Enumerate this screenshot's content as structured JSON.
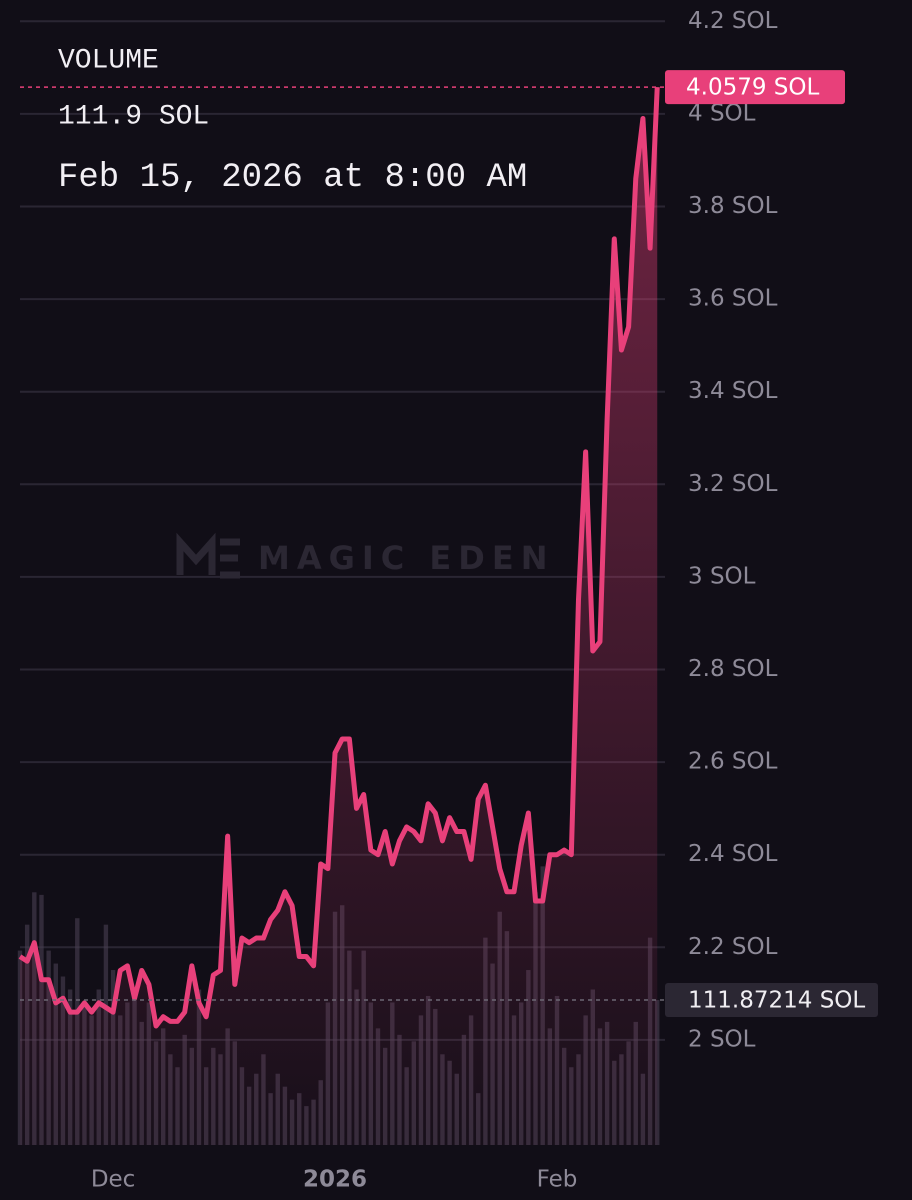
{
  "header": {
    "label": "VOLUME",
    "value": "111.9 SOL",
    "date": "Feb 15, 2026 at 8:00 AM"
  },
  "watermark": "MAGIC EDEN",
  "chart_data": {
    "type": "line",
    "categories": [
      null,
      null,
      null,
      null,
      null,
      null,
      null,
      null,
      null,
      null,
      null,
      null,
      null,
      "Dec",
      null,
      null,
      null,
      null,
      null,
      null,
      null,
      null,
      null,
      null,
      null,
      null,
      null,
      null,
      null,
      null,
      null,
      null,
      null,
      null,
      null,
      null,
      null,
      null,
      null,
      null,
      null,
      null,
      null,
      null,
      "2026",
      null,
      null,
      null,
      null,
      null,
      null,
      null,
      null,
      null,
      null,
      null,
      null,
      null,
      null,
      null,
      null,
      null,
      null,
      null,
      null,
      null,
      null,
      null,
      null,
      null,
      null,
      null,
      null,
      null,
      null,
      "Feb",
      null,
      null,
      null,
      null,
      null,
      null,
      null,
      null,
      null,
      null,
      null,
      null,
      null,
      null
    ],
    "series": [
      {
        "type": "line",
        "color": "#e8407a",
        "values": [
          2.18,
          2.17,
          2.21,
          2.13,
          2.13,
          2.08,
          2.09,
          2.06,
          2.06,
          2.08,
          2.06,
          2.08,
          2.07,
          2.06,
          2.15,
          2.16,
          2.09,
          2.15,
          2.12,
          2.03,
          2.05,
          2.04,
          2.04,
          2.06,
          2.16,
          2.08,
          2.05,
          2.14,
          2.15,
          2.44,
          2.12,
          2.22,
          2.21,
          2.22,
          2.22,
          2.26,
          2.28,
          2.32,
          2.29,
          2.18,
          2.18,
          2.16,
          2.38,
          2.37,
          2.62,
          2.65,
          2.65,
          2.5,
          2.53,
          2.41,
          2.4,
          2.45,
          2.38,
          2.43,
          2.46,
          2.45,
          2.43,
          2.51,
          2.49,
          2.43,
          2.48,
          2.45,
          2.45,
          2.39,
          2.52,
          2.55,
          2.46,
          2.37,
          2.32,
          2.32,
          2.42,
          2.49,
          2.3,
          2.3,
          2.4,
          2.4,
          2.41,
          2.4,
          2.95,
          3.27,
          2.84,
          2.86,
          3.34,
          3.73,
          3.49,
          3.54,
          3.86,
          3.99,
          3.71,
          4.0579
        ],
        "value_labels": [
          null,
          null,
          null,
          null,
          null,
          null,
          null,
          null,
          null,
          null,
          null,
          null,
          null,
          null,
          null,
          null,
          null,
          null,
          null,
          null,
          null,
          null,
          null,
          null,
          null,
          null,
          null,
          null,
          null,
          null,
          null,
          null,
          null,
          null,
          null,
          null,
          null,
          null,
          null,
          null,
          null,
          null,
          null,
          null,
          null,
          null,
          null,
          null,
          null,
          null,
          null,
          null,
          null,
          null,
          null,
          null,
          null,
          null,
          null,
          null,
          null,
          null,
          null,
          null,
          null,
          null,
          null,
          null,
          null,
          null,
          null,
          null,
          null,
          null,
          null,
          null,
          null,
          null,
          null,
          null,
          null,
          null,
          null,
          null,
          null,
          null,
          null,
          null,
          null,
          "4.0579 SOL"
        ]
      },
      {
        "type": "bar",
        "axis": "y2",
        "color": "#4a3f52",
        "values": [
          150,
          170,
          195,
          193,
          150,
          140,
          130,
          120,
          175,
          110,
          100,
          120,
          170,
          135,
          100,
          110,
          120,
          95,
          110,
          80,
          90,
          70,
          60,
          85,
          75,
          120,
          60,
          75,
          70,
          90,
          80,
          60,
          45,
          55,
          70,
          40,
          55,
          45,
          35,
          40,
          30,
          35,
          50,
          110,
          180,
          185,
          150,
          120,
          150,
          110,
          90,
          75,
          110,
          85,
          60,
          80,
          100,
          115,
          105,
          70,
          65,
          55,
          85,
          100,
          40,
          160,
          140,
          180,
          165,
          100,
          110,
          135,
          195,
          215,
          90,
          115,
          75,
          60,
          70,
          100,
          120,
          90,
          95,
          65,
          70,
          80,
          95,
          55,
          160,
          111.87214
        ],
        "value_labels": [
          null,
          null,
          null,
          null,
          null,
          null,
          null,
          null,
          null,
          null,
          null,
          null,
          null,
          null,
          null,
          null,
          null,
          null,
          null,
          null,
          null,
          null,
          null,
          null,
          null,
          null,
          null,
          null,
          null,
          null,
          null,
          null,
          null,
          null,
          null,
          null,
          null,
          null,
          null,
          null,
          null,
          null,
          null,
          null,
          null,
          null,
          null,
          null,
          null,
          null,
          null,
          null,
          null,
          null,
          null,
          null,
          null,
          null,
          null,
          null,
          null,
          null,
          null,
          null,
          null,
          null,
          null,
          null,
          null,
          null,
          null,
          null,
          null,
          null,
          null,
          null,
          null,
          null,
          null,
          null,
          null,
          null,
          null,
          null,
          null,
          null,
          null,
          null,
          null,
          "111.87214 SOL"
        ]
      }
    ],
    "ylim": [
      1.773,
      4.246
    ],
    "yticks": [
      {
        "value": 2,
        "label": "2 SOL"
      },
      {
        "value": 2.2,
        "label": "2.2 SOL"
      },
      {
        "value": 2.4,
        "label": "2.4 SOL"
      },
      {
        "value": 2.6,
        "label": "2.6 SOL"
      },
      {
        "value": 2.8,
        "label": "2.8 SOL"
      },
      {
        "value": 3,
        "label": "3 SOL"
      },
      {
        "value": 3.2,
        "label": "3.2 SOL"
      },
      {
        "value": 3.4,
        "label": "3.4 SOL"
      },
      {
        "value": 3.6,
        "label": "3.6 SOL"
      },
      {
        "value": 3.8,
        "label": "3.8 SOL"
      },
      {
        "value": 4,
        "label": "4 SOL"
      },
      {
        "value": 4.2,
        "label": "4.2 SOL"
      }
    ],
    "y2lim": [
      0,
      883.5
    ],
    "grid": true
  }
}
